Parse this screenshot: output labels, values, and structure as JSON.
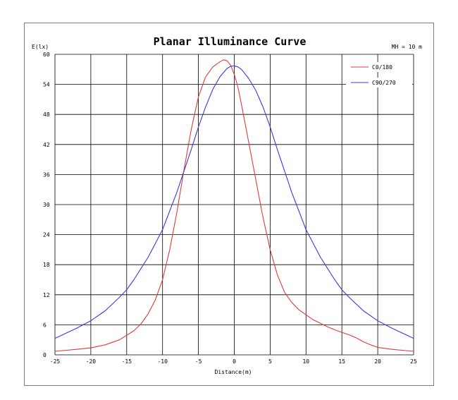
{
  "chart_data": {
    "type": "line",
    "title": "Planar Illuminance Curve",
    "ylabel": "E(lx)",
    "xlabel": "Distance(m)",
    "annotation": "MH = 10 m",
    "xlim": [
      -25,
      25
    ],
    "ylim": [
      0,
      60
    ],
    "xticks": [
      -25,
      -20,
      -15,
      -10,
      -5,
      0,
      5,
      10,
      15,
      20,
      25
    ],
    "yticks": [
      0,
      6,
      12,
      18,
      24,
      30,
      36,
      42,
      48,
      54,
      60
    ],
    "grid": true,
    "legend_position": "top-right",
    "series": [
      {
        "name": "C0/180",
        "color": "#e03a3a",
        "x": [
          -25,
          -22,
          -20,
          -18,
          -16,
          -14,
          -13,
          -12,
          -11,
          -10,
          -9,
          -8,
          -7,
          -6,
          -5,
          -4,
          -3,
          -2,
          -1.5,
          -1,
          -0.5,
          0,
          0.5,
          1,
          2,
          3,
          4,
          5,
          6,
          7,
          8,
          9,
          10,
          11,
          12,
          13,
          14,
          15,
          16,
          17,
          18,
          19,
          20,
          22,
          25
        ],
        "y": [
          0.7,
          1.1,
          1.4,
          2.0,
          3.0,
          4.8,
          6.2,
          8.2,
          11.0,
          15.0,
          21.0,
          28.5,
          37.0,
          45.0,
          51.5,
          55.5,
          57.5,
          58.5,
          58.9,
          58.7,
          57.8,
          56.0,
          53.5,
          50.0,
          42.5,
          35.0,
          27.5,
          21.0,
          16.0,
          12.5,
          10.5,
          9.0,
          8.0,
          7.0,
          6.3,
          5.6,
          5.0,
          4.5,
          4.0,
          3.4,
          2.6,
          2.0,
          1.5,
          1.1,
          0.7
        ]
      },
      {
        "name": "C90/270",
        "color": "#3a3ad6",
        "x": [
          -25,
          -22,
          -20,
          -18,
          -16,
          -15,
          -14,
          -12,
          -10,
          -8,
          -6,
          -5,
          -4,
          -3,
          -2,
          -1,
          -0.5,
          0,
          0.5,
          1,
          2,
          3,
          4,
          5,
          6,
          8,
          10,
          12,
          14,
          15,
          16,
          18,
          20,
          22,
          25
        ],
        "y": [
          3.3,
          5.3,
          6.8,
          8.8,
          11.5,
          13.0,
          15.0,
          19.5,
          25.0,
          32.5,
          41.0,
          45.5,
          49.5,
          53.0,
          55.5,
          57.2,
          57.6,
          57.7,
          57.5,
          57.0,
          55.2,
          52.8,
          49.5,
          45.5,
          41.0,
          32.5,
          25.0,
          19.5,
          15.0,
          13.0,
          11.5,
          8.8,
          6.8,
          5.3,
          3.3
        ]
      }
    ]
  }
}
